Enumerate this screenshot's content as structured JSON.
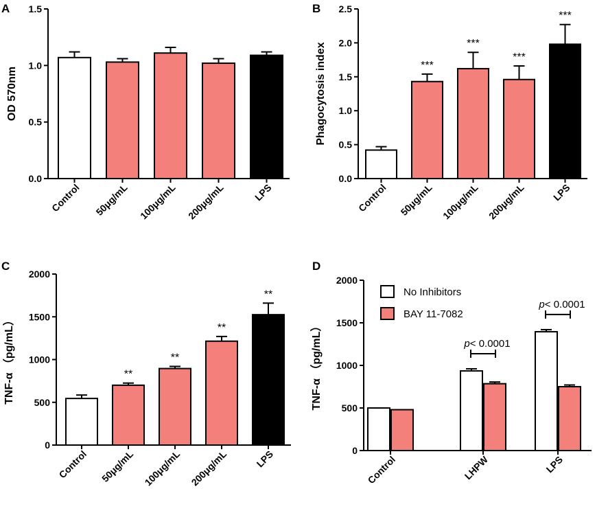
{
  "colors": {
    "control": "#ffffff",
    "treatment": "#f4807c",
    "lps": "#000000",
    "inhibitor": "#f4807c",
    "outline": "#000000"
  },
  "chart_data": [
    {
      "panel": "A",
      "type": "bar",
      "ylabel": "OD 570nm",
      "ylim": [
        0,
        1.5
      ],
      "yticks": [
        "0.0",
        "0.5",
        "1.0",
        "1.5"
      ],
      "categories": [
        "Control",
        "50μg/mL",
        "100μg/mL",
        "200μg/mL",
        "LPS"
      ],
      "values": [
        1.07,
        1.03,
        1.11,
        1.02,
        1.09
      ],
      "errors": [
        0.05,
        0.03,
        0.05,
        0.04,
        0.03
      ],
      "fills": [
        "control",
        "treatment",
        "treatment",
        "treatment",
        "lps"
      ],
      "annotations": [
        "",
        "",
        "",
        "",
        ""
      ]
    },
    {
      "panel": "B",
      "type": "bar",
      "ylabel": "Phagocytosis index",
      "ylim": [
        0,
        2.5
      ],
      "yticks": [
        "0.0",
        "0.5",
        "1.0",
        "1.5",
        "2.0",
        "2.5"
      ],
      "categories": [
        "Control",
        "50μg/mL",
        "100μg/mL",
        "200μg/mL",
        "LPS"
      ],
      "values": [
        0.42,
        1.43,
        1.62,
        1.46,
        1.98
      ],
      "errors": [
        0.05,
        0.11,
        0.24,
        0.2,
        0.29
      ],
      "fills": [
        "control",
        "treatment",
        "treatment",
        "treatment",
        "lps"
      ],
      "annotations": [
        "",
        "***",
        "***",
        "***",
        "***"
      ]
    },
    {
      "panel": "C",
      "type": "bar",
      "ylabel": "TNF-α （pg/mL）",
      "ylim": [
        0,
        2000
      ],
      "yticks": [
        "0",
        "500",
        "1000",
        "1500",
        "2000"
      ],
      "categories": [
        "Control",
        "50μg/mL",
        "100μg/mL",
        "200μg/mL",
        "LPS"
      ],
      "values": [
        545,
        700,
        895,
        1215,
        1525
      ],
      "errors": [
        40,
        25,
        25,
        55,
        135
      ],
      "fills": [
        "control",
        "treatment",
        "treatment",
        "treatment",
        "lps"
      ],
      "annotations": [
        "",
        "**",
        "**",
        "**",
        "**"
      ]
    },
    {
      "panel": "D",
      "type": "grouped-bar",
      "ylabel": "TNF-α （pg/mL）",
      "ylim": [
        0,
        2000
      ],
      "yticks": [
        "0",
        "500",
        "1000",
        "1500",
        "2000"
      ],
      "categories": [
        "Control",
        "LHPW",
        "LPS"
      ],
      "legend_position": "top-left",
      "series": [
        {
          "name": "No Inhibitors",
          "fill": "control",
          "values": [
            500,
            935,
            1395
          ],
          "errors": [
            0,
            25,
            25
          ]
        },
        {
          "name": "BAY 11-7082",
          "fill": "inhibitor",
          "values": [
            480,
            785,
            750
          ],
          "errors": [
            0,
            20,
            20
          ]
        }
      ],
      "comparisons": [
        {
          "category": "LHPW",
          "label": "p< 0.0001"
        },
        {
          "category": "LPS",
          "label": "p< 0.0001"
        }
      ]
    }
  ]
}
